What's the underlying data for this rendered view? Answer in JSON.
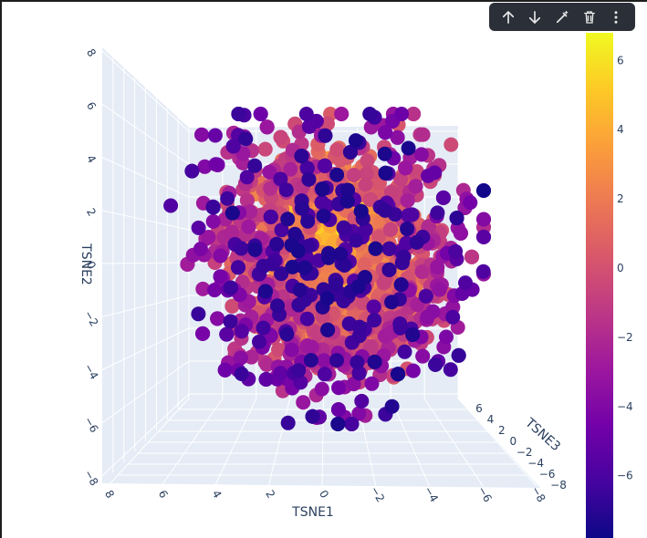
{
  "modebar": {
    "buttons": [
      {
        "name": "arrow-up-icon"
      },
      {
        "name": "arrow-down-icon"
      },
      {
        "name": "magic-wand-icon"
      },
      {
        "name": "trash-icon"
      },
      {
        "name": "more-vertical-icon"
      }
    ]
  },
  "chart_data": {
    "type": "scatter3d",
    "title": "",
    "axes": {
      "x": {
        "label": "TSNE1",
        "range": [
          -8,
          8
        ],
        "ticks": [
          "8",
          "6",
          "4",
          "2",
          "0",
          "−2",
          "−4",
          "−6",
          "−8"
        ]
      },
      "y": {
        "label": "TSNE2",
        "range": [
          -8,
          8
        ],
        "ticks": [
          "8",
          "6",
          "4",
          "2",
          "0",
          "−2",
          "−4",
          "−6",
          "−8"
        ]
      },
      "z": {
        "label": "TSNE3",
        "range": [
          -8,
          8
        ],
        "ticks": [
          "6",
          "4",
          "2",
          "0",
          "−2",
          "−4",
          "−6",
          "−8"
        ]
      }
    },
    "colorbar": {
      "ticks": [
        6,
        4,
        2,
        0,
        -2,
        -4,
        -6
      ],
      "tick_labels": [
        "6",
        "4",
        "2",
        "0",
        "−2",
        "−4",
        "−6"
      ],
      "range": [
        -7.8,
        6.8
      ],
      "colorscale": [
        "#0d0887",
        "#46039f",
        "#7201a8",
        "#9c179e",
        "#bd3786",
        "#d8576b",
        "#ed7953",
        "#fb9f3a",
        "#fdca26",
        "#f0f921"
      ]
    },
    "grid": true,
    "point_count": 2500
  }
}
